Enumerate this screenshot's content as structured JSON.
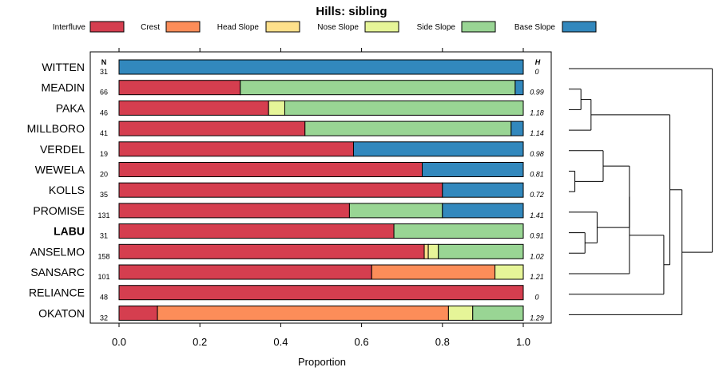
{
  "chart_data": {
    "type": "bar",
    "orientation": "horizontal",
    "stacked": true,
    "title": "Hills: sibling",
    "xlabel": "Proportion",
    "ylabel": "",
    "xlim": [
      0,
      1
    ],
    "xticks": [
      "0.0",
      "0.2",
      "0.4",
      "0.6",
      "0.8",
      "1.0"
    ],
    "column_headers": {
      "n": "N",
      "h": "H"
    },
    "classes": [
      {
        "name": "Interfluve",
        "color": "#D53E4F"
      },
      {
        "name": "Crest",
        "color": "#FC8D59"
      },
      {
        "name": "Head Slope",
        "color": "#FEE08B"
      },
      {
        "name": "Nose Slope",
        "color": "#E6F598"
      },
      {
        "name": "Side Slope",
        "color": "#99D594"
      },
      {
        "name": "Base Slope",
        "color": "#3288BD"
      }
    ],
    "rows": [
      {
        "label": "WITTEN",
        "bold": false,
        "n": "31",
        "h": "0",
        "values": [
          0,
          0,
          0,
          0,
          0,
          1.0
        ]
      },
      {
        "label": "MEADIN",
        "bold": false,
        "n": "66",
        "h": "0.99",
        "values": [
          0.3,
          0,
          0,
          0,
          0.68,
          0.02
        ]
      },
      {
        "label": "PAKA",
        "bold": false,
        "n": "46",
        "h": "1.18",
        "values": [
          0.37,
          0,
          0,
          0.04,
          0.59,
          0
        ]
      },
      {
        "label": "MILLBORO",
        "bold": false,
        "n": "41",
        "h": "1.14",
        "values": [
          0.46,
          0,
          0,
          0,
          0.51,
          0.03
        ]
      },
      {
        "label": "VERDEL",
        "bold": false,
        "n": "19",
        "h": "0.98",
        "values": [
          0.58,
          0,
          0,
          0,
          0,
          0.42
        ]
      },
      {
        "label": "WEWELA",
        "bold": false,
        "n": "20",
        "h": "0.81",
        "values": [
          0.75,
          0,
          0,
          0,
          0,
          0.25
        ]
      },
      {
        "label": "KOLLS",
        "bold": false,
        "n": "35",
        "h": "0.72",
        "values": [
          0.8,
          0,
          0,
          0,
          0,
          0.2
        ]
      },
      {
        "label": "PROMISE",
        "bold": false,
        "n": "131",
        "h": "1.41",
        "values": [
          0.57,
          0,
          0,
          0,
          0.23,
          0.2
        ]
      },
      {
        "label": "LABU",
        "bold": true,
        "n": "31",
        "h": "0.91",
        "values": [
          0.68,
          0,
          0,
          0,
          0.32,
          0
        ]
      },
      {
        "label": "ANSELMO",
        "bold": false,
        "n": "158",
        "h": "1.02",
        "values": [
          0.755,
          0,
          0.01,
          0.025,
          0.21,
          0
        ]
      },
      {
        "label": "SANSARC",
        "bold": false,
        "n": "101",
        "h": "1.21",
        "values": [
          0.625,
          0.305,
          0,
          0.07,
          0,
          0
        ]
      },
      {
        "label": "RELIANCE",
        "bold": false,
        "n": "48",
        "h": "0",
        "values": [
          1.0,
          0,
          0,
          0,
          0,
          0
        ]
      },
      {
        "label": "OKATON",
        "bold": false,
        "n": "32",
        "h": "1.29",
        "values": [
          0.095,
          0.72,
          0,
          0.06,
          0.125,
          0
        ]
      }
    ],
    "dendrogram": {
      "leaf_order": [
        "WITTEN",
        "MEADIN",
        "PAKA",
        "MILLBORO",
        "VERDEL",
        "WEWELA",
        "KOLLS",
        "PROMISE",
        "LABU",
        "ANSELMO",
        "SANSARC",
        "RELIANCE",
        "OKATON"
      ],
      "merges": [
        {
          "a": "MEADIN",
          "b": "PAKA",
          "height": 0.06
        },
        {
          "a": "m1",
          "b": "MILLBORO",
          "height": 0.11
        },
        {
          "a": "WEWELA",
          "b": "KOLLS",
          "height": 0.03
        },
        {
          "a": "VERDEL",
          "b": "m3",
          "height": 0.17
        },
        {
          "a": "LABU",
          "b": "ANSELMO",
          "height": 0.08
        },
        {
          "a": "PROMISE",
          "b": "m5",
          "height": 0.14
        },
        {
          "a": "m4",
          "b": "m6",
          "height": 0.3
        },
        {
          "a": "m7",
          "b": "SANSARC",
          "height": 0.3
        },
        {
          "a": "m8",
          "b": "RELIANCE",
          "height": 0.47
        },
        {
          "a": "m2",
          "b": "m9",
          "height": 0.5
        },
        {
          "a": "m10",
          "b": "OKATON",
          "height": 0.56
        },
        {
          "a": "WITTEN",
          "b": "m11",
          "height": 0.71
        }
      ]
    }
  }
}
